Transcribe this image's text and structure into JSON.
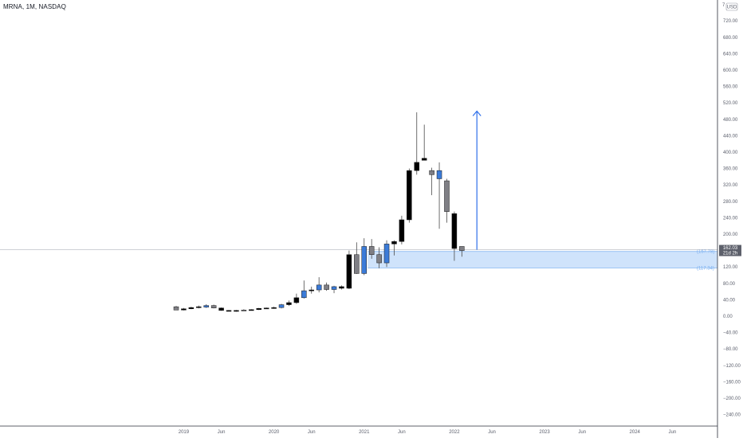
{
  "header": {
    "symbol_title": "MRNA, 1M, NASDAQ",
    "currency": "USD",
    "scale_letter": "7"
  },
  "colors": {
    "black_candle": "#000000",
    "gray_candle": "#7f7f85",
    "blue_candle": "#3b7bd8",
    "zone_fill": "#cfe3fb",
    "zone_border": "#7aaff0",
    "arrow": "#2e6fea",
    "price_line": "#b2b5be",
    "badge": "#5d606b"
  },
  "chart_data": {
    "type": "candlestick",
    "interval": "1M",
    "ylim": [
      -250,
      760
    ],
    "y_ticks": [
      720,
      680,
      640,
      600,
      560,
      520,
      480,
      440,
      400,
      360,
      320,
      280,
      240,
      200,
      160,
      120,
      80,
      40,
      0,
      -40,
      -80,
      -120,
      -160,
      -200,
      -240
    ],
    "y_tick_labels": [
      "720.00",
      "680.00",
      "640.00",
      "600.00",
      "560.00",
      "520.00",
      "480.00",
      "440.00",
      "400.00",
      "360.00",
      "320.00",
      "280.00",
      "240.00",
      "200.00",
      "160.00",
      "120.00",
      "80.00",
      "40.00",
      "0.00",
      "−40.00",
      "−80.00",
      "−120.00",
      "−160.00",
      "−200.00",
      "−240.00"
    ],
    "x_ticks": [
      {
        "label": "2019",
        "index": 1
      },
      {
        "label": "Jun",
        "index": 6
      },
      {
        "label": "2020",
        "index": 13
      },
      {
        "label": "Jun",
        "index": 18
      },
      {
        "label": "2021",
        "index": 25
      },
      {
        "label": "Jun",
        "index": 30
      },
      {
        "label": "2022",
        "index": 37
      },
      {
        "label": "Jun",
        "index": 42
      },
      {
        "label": "2023",
        "index": 49
      },
      {
        "label": "Jun",
        "index": 54
      },
      {
        "label": "2024",
        "index": 61
      },
      {
        "label": "Jun",
        "index": 66
      }
    ],
    "candles": [
      {
        "date": "2018-12",
        "open": 23,
        "high": 25,
        "low": 15,
        "close": 15,
        "style": "gray"
      },
      {
        "date": "2019-01",
        "open": 15,
        "high": 20,
        "low": 14,
        "close": 18,
        "style": "black"
      },
      {
        "date": "2019-02",
        "open": 18,
        "high": 23,
        "low": 17,
        "close": 21,
        "style": "black"
      },
      {
        "date": "2019-03",
        "open": 21,
        "high": 26,
        "low": 19,
        "close": 23,
        "style": "black"
      },
      {
        "date": "2019-04",
        "open": 22,
        "high": 29,
        "low": 20,
        "close": 26,
        "style": "blue"
      },
      {
        "date": "2019-05",
        "open": 26,
        "high": 28,
        "low": 19,
        "close": 20,
        "style": "gray"
      },
      {
        "date": "2019-06",
        "open": 20,
        "high": 21,
        "low": 13,
        "close": 14,
        "style": "black"
      },
      {
        "date": "2019-07",
        "open": 14,
        "high": 15,
        "low": 12,
        "close": 13,
        "style": "black"
      },
      {
        "date": "2019-08",
        "open": 13,
        "high": 15,
        "low": 11,
        "close": 14,
        "style": "black"
      },
      {
        "date": "2019-09",
        "open": 14,
        "high": 17,
        "low": 13,
        "close": 15,
        "style": "gray"
      },
      {
        "date": "2019-10",
        "open": 15,
        "high": 17,
        "low": 14,
        "close": 16,
        "style": "black"
      },
      {
        "date": "2019-11",
        "open": 16,
        "high": 20,
        "low": 15,
        "close": 19,
        "style": "black"
      },
      {
        "date": "2019-12",
        "open": 19,
        "high": 21,
        "low": 18,
        "close": 20,
        "style": "black"
      },
      {
        "date": "2020-01",
        "open": 20,
        "high": 23,
        "low": 18,
        "close": 21,
        "style": "black"
      },
      {
        "date": "2020-02",
        "open": 21,
        "high": 30,
        "low": 19,
        "close": 28,
        "style": "blue"
      },
      {
        "date": "2020-03",
        "open": 28,
        "high": 38,
        "low": 25,
        "close": 33,
        "style": "black"
      },
      {
        "date": "2020-04",
        "open": 33,
        "high": 55,
        "low": 30,
        "close": 45,
        "style": "black"
      },
      {
        "date": "2020-05",
        "open": 45,
        "high": 87,
        "low": 43,
        "close": 62,
        "style": "blue"
      },
      {
        "date": "2020-06",
        "open": 62,
        "high": 72,
        "low": 55,
        "close": 64,
        "style": "black"
      },
      {
        "date": "2020-07",
        "open": 64,
        "high": 95,
        "low": 58,
        "close": 76,
        "style": "blue"
      },
      {
        "date": "2020-08",
        "open": 76,
        "high": 82,
        "low": 62,
        "close": 65,
        "style": "gray"
      },
      {
        "date": "2020-09",
        "open": 65,
        "high": 74,
        "low": 56,
        "close": 72,
        "style": "blue"
      },
      {
        "date": "2020-10",
        "open": 72,
        "high": 75,
        "low": 65,
        "close": 68,
        "style": "black"
      },
      {
        "date": "2020-11",
        "open": 68,
        "high": 160,
        "low": 66,
        "close": 150,
        "style": "black"
      },
      {
        "date": "2020-12",
        "open": 150,
        "high": 180,
        "low": 103,
        "close": 104,
        "style": "gray"
      },
      {
        "date": "2021-01",
        "open": 104,
        "high": 190,
        "low": 100,
        "close": 170,
        "style": "blue"
      },
      {
        "date": "2021-02",
        "open": 170,
        "high": 188,
        "low": 140,
        "close": 150,
        "style": "gray"
      },
      {
        "date": "2021-03",
        "open": 150,
        "high": 168,
        "low": 117,
        "close": 130,
        "style": "gray"
      },
      {
        "date": "2021-04",
        "open": 130,
        "high": 185,
        "low": 120,
        "close": 176,
        "style": "blue"
      },
      {
        "date": "2021-05",
        "open": 176,
        "high": 185,
        "low": 148,
        "close": 182,
        "style": "black"
      },
      {
        "date": "2021-06",
        "open": 182,
        "high": 245,
        "low": 175,
        "close": 235,
        "style": "black"
      },
      {
        "date": "2021-07",
        "open": 235,
        "high": 360,
        "low": 228,
        "close": 355,
        "style": "black"
      },
      {
        "date": "2021-08",
        "open": 355,
        "high": 497,
        "low": 345,
        "close": 375,
        "style": "black"
      },
      {
        "date": "2021-09",
        "open": 380,
        "high": 467,
        "low": 380,
        "close": 385,
        "style": "black"
      },
      {
        "date": "2021-10",
        "open": 355,
        "high": 362,
        "low": 295,
        "close": 345,
        "style": "gray"
      },
      {
        "date": "2021-11",
        "open": 355,
        "high": 375,
        "low": 213,
        "close": 335,
        "style": "blue"
      },
      {
        "date": "2021-12",
        "open": 330,
        "high": 335,
        "low": 228,
        "close": 255,
        "style": "gray"
      },
      {
        "date": "2022-01",
        "open": 250,
        "high": 255,
        "low": 135,
        "close": 165,
        "style": "black"
      },
      {
        "date": "2022-02",
        "open": 170,
        "high": 170,
        "low": 145,
        "close": 160,
        "style": "gray"
      }
    ],
    "annotations": {
      "current_price": 162.03,
      "current_price_label": "162.03",
      "countdown_label": "21d 2h",
      "zone_top": 157.78,
      "zone_top_label": "(157.78)",
      "zone_bottom": 117.34,
      "zone_bottom_label": "(117.34)",
      "zone_start_index": 26,
      "arrow_index": 40,
      "arrow_from": 162,
      "arrow_to": 500
    }
  }
}
